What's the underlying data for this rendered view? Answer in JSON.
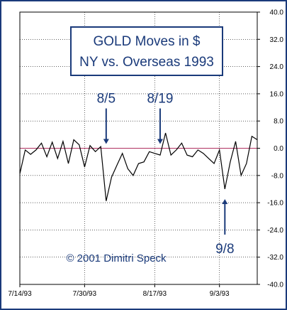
{
  "colors": {
    "frame_outer": "#1a3a7a",
    "plot_border": "#000000",
    "grid": "#000000",
    "zero_line": "#b03060",
    "series": "#000000",
    "annotation": "#1a3a7a",
    "title_border": "#1a3a7a"
  },
  "chart_data": {
    "type": "line",
    "title": "GOLD Moves in $",
    "subtitle": "NY vs. Overseas 1993",
    "xlabel": "",
    "ylabel": "",
    "ylim": [
      -40,
      40
    ],
    "grid": true,
    "y_ticks": [
      "40.0",
      "32.0",
      "24.0",
      "16.0",
      "8.0",
      "0.0",
      "-8.0",
      "-16.0",
      "-24.0",
      "-32.0",
      "-40.0"
    ],
    "x_ticks": [
      "7/14/93",
      "7/30/93",
      "8/17/93",
      "9/3/93"
    ],
    "x_tick_index": [
      0,
      12,
      25,
      37
    ],
    "series": [
      {
        "values": [
          -7.5,
          -0.5,
          -1.8,
          -0.5,
          1.5,
          -2.5,
          1.8,
          -3.0,
          2.0,
          -4.5,
          2.5,
          1.0,
          -5.5,
          0.8,
          -1.0,
          0.5,
          -15.5,
          -8.5,
          -5.0,
          -1.5,
          -6.0,
          -8.0,
          -4.5,
          -4.0,
          -1.0,
          -1.5,
          -2.0,
          4.5,
          -2.0,
          -0.5,
          1.5,
          -2.0,
          -2.5,
          -0.5,
          -1.5,
          -3.0,
          -4.5,
          -0.5,
          -12.0,
          -4.0,
          2.0,
          -8.0,
          -4.5,
          3.5,
          2.5
        ]
      }
    ],
    "annotations": [
      {
        "label": "8/5",
        "index": 16,
        "direction": "down"
      },
      {
        "label": "8/19",
        "index": 26,
        "direction": "down"
      },
      {
        "label": "9/8",
        "index": 38,
        "direction": "up"
      }
    ],
    "credit": "© 2001 Dimitri Speck"
  }
}
